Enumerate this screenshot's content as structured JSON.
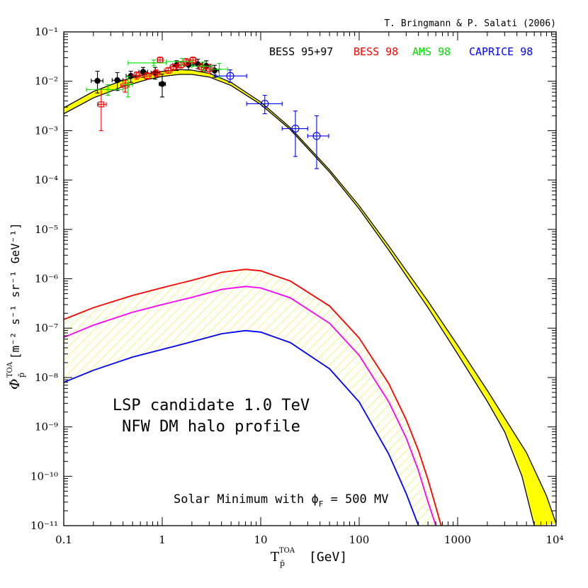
{
  "chart_data": {
    "type": "line",
    "credit": "T. Bringmann & P. Salati (2006)",
    "xlabel_main": "T",
    "xlabel_sup": "TOA",
    "xlabel_sub": "p̄",
    "xlabel_unit": "[GeV]",
    "ylabel_phi": "Φ",
    "ylabel_sup": "TOA",
    "ylabel_sub": "p̄",
    "ylabel_unit": "[m⁻² s⁻¹ sr⁻¹ GeV⁻¹]",
    "xscale": "log",
    "yscale": "log",
    "xlim": [
      0.1,
      10000
    ],
    "ylim": [
      1e-11,
      0.1
    ],
    "x_ticks": [
      {
        "v": 0.1,
        "label": "0.1"
      },
      {
        "v": 1,
        "label": "1"
      },
      {
        "v": 10,
        "label": "10"
      },
      {
        "v": 100,
        "label": "100"
      },
      {
        "v": 1000,
        "label": "1000"
      },
      {
        "v": 10000,
        "label": "10⁴"
      }
    ],
    "y_ticks": [
      {
        "v": 0.1,
        "label": "10⁻¹"
      },
      {
        "v": 0.01,
        "label": "10⁻²"
      },
      {
        "v": 0.001,
        "label": "10⁻³"
      },
      {
        "v": 0.0001,
        "label": "10⁻⁴"
      },
      {
        "v": 1e-05,
        "label": "10⁻⁵"
      },
      {
        "v": 1e-06,
        "label": "10⁻⁶"
      },
      {
        "v": 1e-07,
        "label": "10⁻⁷"
      },
      {
        "v": 1e-08,
        "label": "10⁻⁸"
      },
      {
        "v": 1e-09,
        "label": "10⁻⁹"
      },
      {
        "v": 1e-10,
        "label": "10⁻¹⁰"
      },
      {
        "v": 1e-11,
        "label": "10⁻¹¹"
      }
    ],
    "legend": [
      {
        "name": "BESS 95+97",
        "color": "#000000"
      },
      {
        "name": "BESS 98",
        "color": "#ff0000"
      },
      {
        "name": "AMS 98",
        "color": "#00dd00"
      },
      {
        "name": "CAPRICE 98",
        "color": "#0000ff"
      }
    ],
    "annotation_line1": "LSP candidate 1.0 TeV",
    "annotation_line2": "NFW DM halo profile",
    "solar_text": "Solar Minimum with ϕ",
    "solar_sub": "F",
    "solar_value": "= 500 MV",
    "background_band": {
      "fill": "#ffff00",
      "upper": [
        [
          0.1,
          0.0029
        ],
        [
          0.2,
          0.0062
        ],
        [
          0.4,
          0.0105
        ],
        [
          0.7,
          0.014
        ],
        [
          1,
          0.0158
        ],
        [
          1.5,
          0.0172
        ],
        [
          2,
          0.0168
        ],
        [
          3,
          0.0145
        ],
        [
          5,
          0.0095
        ],
        [
          10,
          0.0038
        ],
        [
          20,
          0.00115
        ],
        [
          50,
          0.00016
        ],
        [
          100,
          3e-05
        ],
        [
          200,
          4.6e-06
        ],
        [
          500,
          3.5e-07
        ],
        [
          1000,
          4.5e-08
        ],
        [
          2000,
          5.5e-09
        ],
        [
          5000,
          3e-10
        ],
        [
          8000,
          4e-11
        ],
        [
          10000,
          1.1e-11
        ]
      ],
      "lower": [
        [
          0.1,
          0.0022
        ],
        [
          0.2,
          0.0046
        ],
        [
          0.4,
          0.0078
        ],
        [
          0.7,
          0.0108
        ],
        [
          1,
          0.0125
        ],
        [
          1.5,
          0.0138
        ],
        [
          2,
          0.0138
        ],
        [
          3,
          0.0122
        ],
        [
          5,
          0.0082
        ],
        [
          10,
          0.0034
        ],
        [
          20,
          0.00105
        ],
        [
          50,
          0.000145
        ],
        [
          100,
          2.6e-05
        ],
        [
          200,
          3.8e-06
        ],
        [
          500,
          2.6e-07
        ],
        [
          1000,
          3e-08
        ],
        [
          2000,
          3.3e-09
        ],
        [
          3000,
          8e-10
        ],
        [
          4500,
          1e-10
        ],
        [
          6000,
          1e-11
        ]
      ]
    },
    "signal": {
      "upper_color": "#ff0000",
      "median_color": "#ff00ff",
      "lower_color": "#0000ff",
      "hatch_color": "#eeee44",
      "upper": [
        [
          0.1,
          1.5e-07
        ],
        [
          0.2,
          2.6e-07
        ],
        [
          0.5,
          4.6e-07
        ],
        [
          1,
          6.6e-07
        ],
        [
          2,
          9.3e-07
        ],
        [
          4,
          1.35e-06
        ],
        [
          7,
          1.55e-06
        ],
        [
          10,
          1.45e-06
        ],
        [
          20,
          9e-07
        ],
        [
          50,
          2.8e-07
        ],
        [
          100,
          6.3e-08
        ],
        [
          200,
          7.5e-09
        ],
        [
          300,
          1.4e-09
        ],
        [
          400,
          3.3e-10
        ],
        [
          500,
          8.5e-11
        ],
        [
          600,
          2.4e-11
        ],
        [
          680,
          1e-11
        ]
      ],
      "median": [
        [
          0.1,
          6.5e-08
        ],
        [
          0.2,
          1.15e-07
        ],
        [
          0.5,
          2.1e-07
        ],
        [
          1,
          3e-07
        ],
        [
          2,
          4.2e-07
        ],
        [
          4,
          6.1e-07
        ],
        [
          7,
          7e-07
        ],
        [
          10,
          6.5e-07
        ],
        [
          20,
          4.1e-07
        ],
        [
          50,
          1.25e-07
        ],
        [
          100,
          2.8e-08
        ],
        [
          200,
          3.2e-09
        ],
        [
          300,
          6e-10
        ],
        [
          400,
          1.3e-10
        ],
        [
          500,
          3e-11
        ],
        [
          600,
          1e-11
        ]
      ],
      "lower": [
        [
          0.1,
          8e-09
        ],
        [
          0.2,
          1.4e-08
        ],
        [
          0.5,
          2.6e-08
        ],
        [
          1,
          3.7e-08
        ],
        [
          2,
          5.3e-08
        ],
        [
          4,
          7.7e-08
        ],
        [
          7,
          8.9e-08
        ],
        [
          10,
          8.3e-08
        ],
        [
          20,
          5.1e-08
        ],
        [
          50,
          1.5e-08
        ],
        [
          100,
          3.2e-09
        ],
        [
          200,
          2.8e-10
        ],
        [
          300,
          4.5e-11
        ],
        [
          400,
          1e-11
        ]
      ]
    },
    "data_points": [
      {
        "set": "BESS 95+97",
        "x": 0.22,
        "y": 0.0102,
        "xlo": 0.19,
        "xhi": 0.25,
        "ylo": 0.0058,
        "yhi": 0.016,
        "marker": "filled-circle"
      },
      {
        "set": "BESS 95+97",
        "x": 0.35,
        "y": 0.0105,
        "xlo": 0.31,
        "xhi": 0.4,
        "ylo": 0.0065,
        "yhi": 0.015,
        "marker": "filled-circle"
      },
      {
        "set": "BESS 95+97",
        "x": 0.48,
        "y": 0.0128,
        "xlo": 0.43,
        "xhi": 0.54,
        "ylo": 0.0095,
        "yhi": 0.016,
        "marker": "filled-circle"
      },
      {
        "set": "BESS 95+97",
        "x": 0.64,
        "y": 0.0155,
        "xlo": 0.58,
        "xhi": 0.71,
        "ylo": 0.012,
        "yhi": 0.019,
        "marker": "filled-circle"
      },
      {
        "set": "BESS 95+97",
        "x": 0.85,
        "y": 0.0148,
        "xlo": 0.77,
        "xhi": 0.95,
        "ylo": 0.011,
        "yhi": 0.019,
        "marker": "filled-circle"
      },
      {
        "set": "BESS 95+97",
        "x": 1.0,
        "y": 0.0088,
        "xlo": 0.93,
        "xhi": 1.08,
        "ylo": 0.0048,
        "yhi": 0.014,
        "marker": "filled-circle"
      },
      {
        "set": "BESS 95+97",
        "x": 1.4,
        "y": 0.0212,
        "xlo": 1.28,
        "xhi": 1.55,
        "ylo": 0.0165,
        "yhi": 0.026,
        "marker": "filled-circle"
      },
      {
        "set": "BESS 95+97",
        "x": 1.85,
        "y": 0.0215,
        "xlo": 1.68,
        "xhi": 2.05,
        "ylo": 0.017,
        "yhi": 0.027,
        "marker": "filled-circle"
      },
      {
        "set": "BESS 95+97",
        "x": 2.3,
        "y": 0.0222,
        "xlo": 2.1,
        "xhi": 2.55,
        "ylo": 0.018,
        "yhi": 0.028,
        "marker": "filled-circle"
      },
      {
        "set": "BESS 95+97",
        "x": 2.8,
        "y": 0.0205,
        "xlo": 2.55,
        "xhi": 3.1,
        "ylo": 0.016,
        "yhi": 0.026,
        "marker": "filled-circle"
      },
      {
        "set": "BESS 95+97",
        "x": 3.4,
        "y": 0.0165,
        "xlo": 3.1,
        "xhi": 3.75,
        "ylo": 0.012,
        "yhi": 0.021,
        "marker": "filled-circle"
      },
      {
        "set": "BESS 98",
        "x": 0.24,
        "y": 0.0034,
        "xlo": 0.22,
        "xhi": 0.27,
        "ylo": 0.001,
        "yhi": 0.0068,
        "marker": "open-square"
      },
      {
        "set": "BESS 98",
        "x": 0.42,
        "y": 0.0082,
        "xlo": 0.38,
        "xhi": 0.46,
        "ylo": 0.006,
        "yhi": 0.0105,
        "marker": "open-square"
      },
      {
        "set": "BESS 98",
        "x": 0.55,
        "y": 0.0132,
        "xlo": 0.5,
        "xhi": 0.6,
        "ylo": 0.011,
        "yhi": 0.0155,
        "marker": "open-square"
      },
      {
        "set": "BESS 98",
        "x": 0.7,
        "y": 0.0128,
        "xlo": 0.64,
        "xhi": 0.77,
        "ylo": 0.011,
        "yhi": 0.015,
        "marker": "open-square"
      },
      {
        "set": "BESS 98",
        "x": 0.87,
        "y": 0.0145,
        "xlo": 0.79,
        "xhi": 0.95,
        "ylo": 0.0125,
        "yhi": 0.017,
        "marker": "open-square"
      },
      {
        "set": "BESS 98",
        "x": 0.95,
        "y": 0.027,
        "xlo": 0.89,
        "xhi": 1.02,
        "ylo": 0.024,
        "yhi": 0.031,
        "marker": "open-square"
      },
      {
        "set": "BESS 98",
        "x": 1.15,
        "y": 0.0165,
        "xlo": 1.05,
        "xhi": 1.26,
        "ylo": 0.0145,
        "yhi": 0.019,
        "marker": "open-square"
      },
      {
        "set": "BESS 98",
        "x": 1.3,
        "y": 0.0195,
        "xlo": 1.2,
        "xhi": 1.42,
        "ylo": 0.017,
        "yhi": 0.022,
        "marker": "open-square"
      },
      {
        "set": "BESS 98",
        "x": 1.55,
        "y": 0.0215,
        "xlo": 1.42,
        "xhi": 1.7,
        "ylo": 0.0185,
        "yhi": 0.025,
        "marker": "open-square"
      },
      {
        "set": "BESS 98",
        "x": 1.75,
        "y": 0.0245,
        "xlo": 1.6,
        "xhi": 1.9,
        "ylo": 0.021,
        "yhi": 0.029,
        "marker": "open-square"
      },
      {
        "set": "BESS 98",
        "x": 2.05,
        "y": 0.0268,
        "xlo": 1.9,
        "xhi": 2.2,
        "ylo": 0.023,
        "yhi": 0.031,
        "marker": "open-square"
      },
      {
        "set": "BESS 98",
        "x": 2.5,
        "y": 0.0192,
        "xlo": 2.3,
        "xhi": 2.7,
        "ylo": 0.016,
        "yhi": 0.023,
        "marker": "open-square"
      },
      {
        "set": "BESS 98",
        "x": 3.0,
        "y": 0.0178,
        "xlo": 2.75,
        "xhi": 3.3,
        "ylo": 0.0145,
        "yhi": 0.022,
        "marker": "open-square"
      },
      {
        "set": "AMS 98",
        "x": 0.28,
        "y": 0.0068,
        "xlo": 0.17,
        "xhi": 0.4,
        "ylo": 0.0052,
        "yhi": 0.0085,
        "marker": "cross"
      },
      {
        "set": "AMS 98",
        "x": 0.45,
        "y": 0.0085,
        "xlo": 0.4,
        "xhi": 0.5,
        "ylo": 0.0048,
        "yhi": 0.0125,
        "marker": "cross"
      },
      {
        "set": "AMS 98",
        "x": 0.82,
        "y": 0.0235,
        "xlo": 0.45,
        "xhi": 1.1,
        "ylo": 0.0205,
        "yhi": 0.027,
        "marker": "cross"
      },
      {
        "set": "AMS 98",
        "x": 1.6,
        "y": 0.025,
        "xlo": 1.1,
        "xhi": 2.0,
        "ylo": 0.021,
        "yhi": 0.029,
        "marker": "cross"
      },
      {
        "set": "AMS 98",
        "x": 2.6,
        "y": 0.0202,
        "xlo": 2.0,
        "xhi": 3.2,
        "ylo": 0.0165,
        "yhi": 0.0245,
        "marker": "cross"
      },
      {
        "set": "AMS 98",
        "x": 3.8,
        "y": 0.0175,
        "xlo": 3.2,
        "xhi": 4.6,
        "ylo": 0.012,
        "yhi": 0.023,
        "marker": "cross"
      },
      {
        "set": "CAPRICE 98",
        "x": 4.9,
        "y": 0.0128,
        "xlo": 3.5,
        "xhi": 7.2,
        "ylo": 0.0095,
        "yhi": 0.017,
        "marker": "open-circle"
      },
      {
        "set": "CAPRICE 98",
        "x": 11.0,
        "y": 0.0035,
        "xlo": 7.2,
        "xhi": 16.5,
        "ylo": 0.0022,
        "yhi": 0.0052,
        "marker": "open-circle"
      },
      {
        "set": "CAPRICE 98",
        "x": 22.5,
        "y": 0.0011,
        "xlo": 16.5,
        "xhi": 30.0,
        "ylo": 0.0003,
        "yhi": 0.0025,
        "marker": "open-circle"
      },
      {
        "set": "CAPRICE 98",
        "x": 37.0,
        "y": 0.00078,
        "xlo": 30.0,
        "xhi": 49.0,
        "ylo": 0.00017,
        "yhi": 0.002,
        "marker": "open-circle"
      }
    ]
  }
}
